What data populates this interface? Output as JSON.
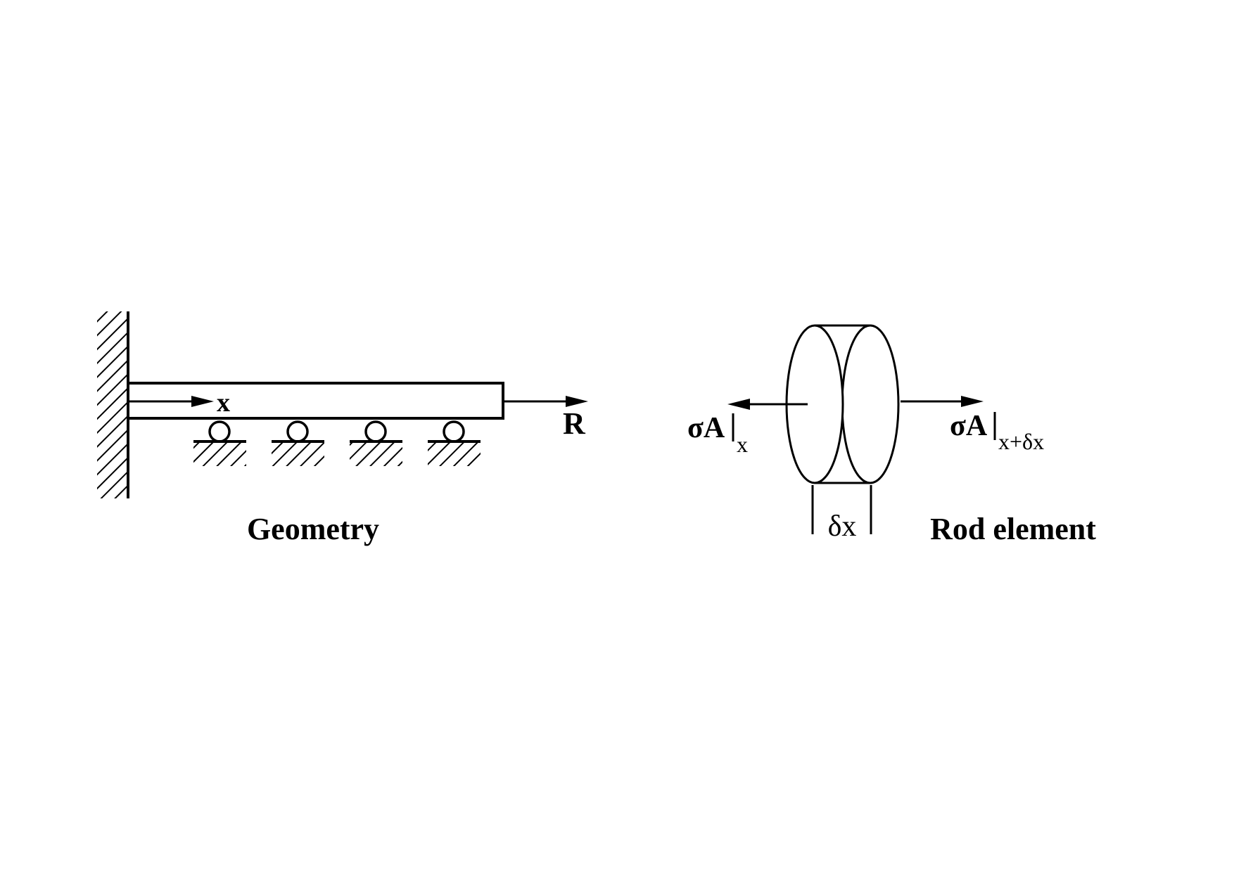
{
  "geometry": {
    "caption": "Geometry",
    "axis_label": "x",
    "load_label": "R"
  },
  "rod_element": {
    "caption": "Rod element",
    "left_force": {
      "main": "σA",
      "sub": "x"
    },
    "right_force": {
      "main": "σA",
      "sub": "x+δx"
    },
    "length_label": "δx"
  },
  "colors": {
    "ink": "#000000",
    "background": "#ffffff"
  }
}
